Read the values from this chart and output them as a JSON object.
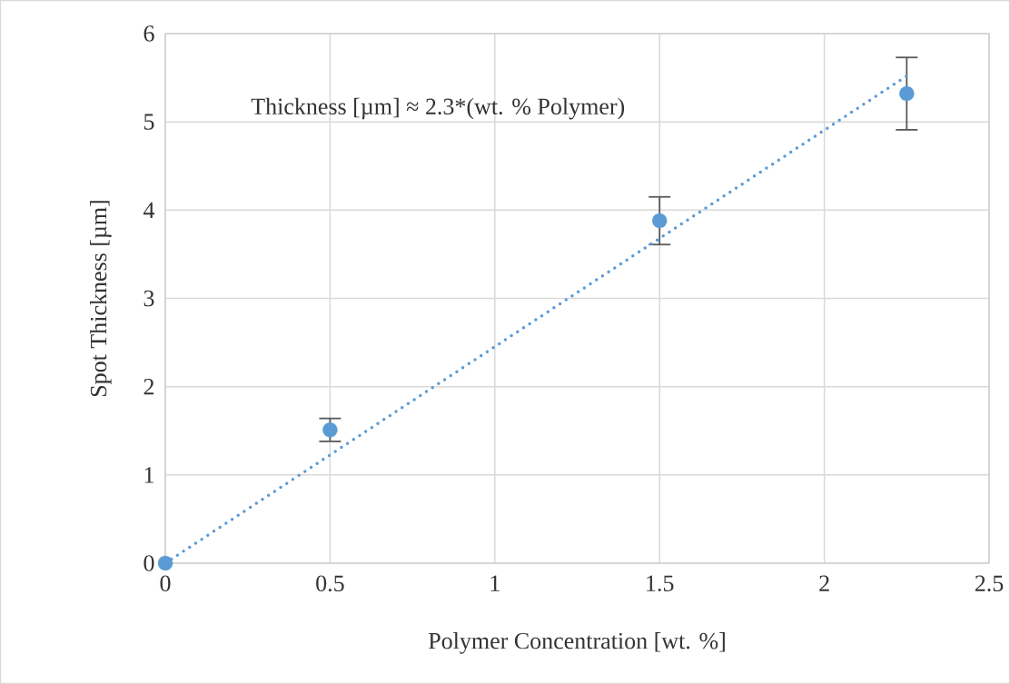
{
  "chart_data": {
    "type": "scatter",
    "xlabel": "Polymer Concentration [wt. %]",
    "ylabel": "Spot Thickness [µm]",
    "annotations": [
      "Thickness [µm] ≈ 2.3*(wt. % Polymer)"
    ],
    "xlim": [
      0,
      2.5
    ],
    "ylim": [
      0,
      6
    ],
    "xticks": [
      0,
      0.5,
      1,
      1.5,
      2,
      2.5
    ],
    "yticks": [
      0,
      1,
      2,
      3,
      4,
      5,
      6
    ],
    "grid": true,
    "series": [
      {
        "color": "#5b9bd5",
        "marker": "circle",
        "x": [
          0,
          0.5,
          1.5,
          2.25
        ],
        "values": [
          0,
          1.51,
          3.88,
          5.32
        ],
        "errors": [
          null,
          0.13,
          0.27,
          0.41
        ]
      },
      {
        "type": "line",
        "color": "#5b9bd5",
        "marker": "none",
        "line_style": "dotted",
        "x": [
          0,
          2.25
        ],
        "values": [
          0,
          5.52
        ]
      }
    ]
  }
}
